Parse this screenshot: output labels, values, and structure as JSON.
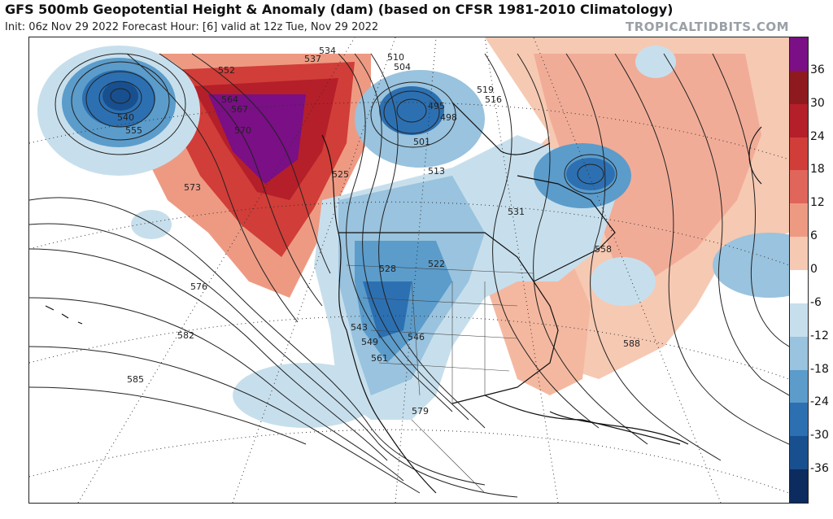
{
  "header": {
    "title": "GFS 500mb Geopotential Height & Anomaly (dam) (based on CFSR 1981-2010 Climatology)",
    "subtitle": "Init: 06z Nov 29 2022   Forecast Hour: [6]   valid at 12z Tue, Nov 29 2022",
    "brand": "TROPICALTIDBITS.COM"
  },
  "colorbar": {
    "ticks": [
      "36",
      "30",
      "24",
      "18",
      "12",
      "6",
      "0",
      "-6",
      "-12",
      "-18",
      "-24",
      "-30",
      "-36"
    ],
    "colors": [
      "#7a0f86",
      "#8e1a20",
      "#b41f2a",
      "#d13d38",
      "#e0655a",
      "#ee9a83",
      "#f6c9b3",
      "#ffffff",
      "#c7dfec",
      "#99c3de",
      "#5b9ccb",
      "#2c70b2",
      "#184f8f",
      "#0c2b5e"
    ]
  },
  "map": {
    "height_labels": [
      "510",
      "504",
      "495",
      "498",
      "501",
      "513",
      "516",
      "519",
      "522",
      "525",
      "528",
      "531",
      "534",
      "537",
      "540",
      "543",
      "546",
      "549",
      "552",
      "555",
      "558",
      "561",
      "564",
      "567",
      "570",
      "573",
      "576",
      "579",
      "582",
      "585",
      "588"
    ],
    "colors": {
      "ridge": "#d8453b",
      "ridge_core": "#7a0f86",
      "trough": "#2c70b2",
      "trough_light": "#a9cde4",
      "warm_light": "#f4b8a0",
      "land_line": "#111111",
      "contour": "#222222"
    }
  }
}
